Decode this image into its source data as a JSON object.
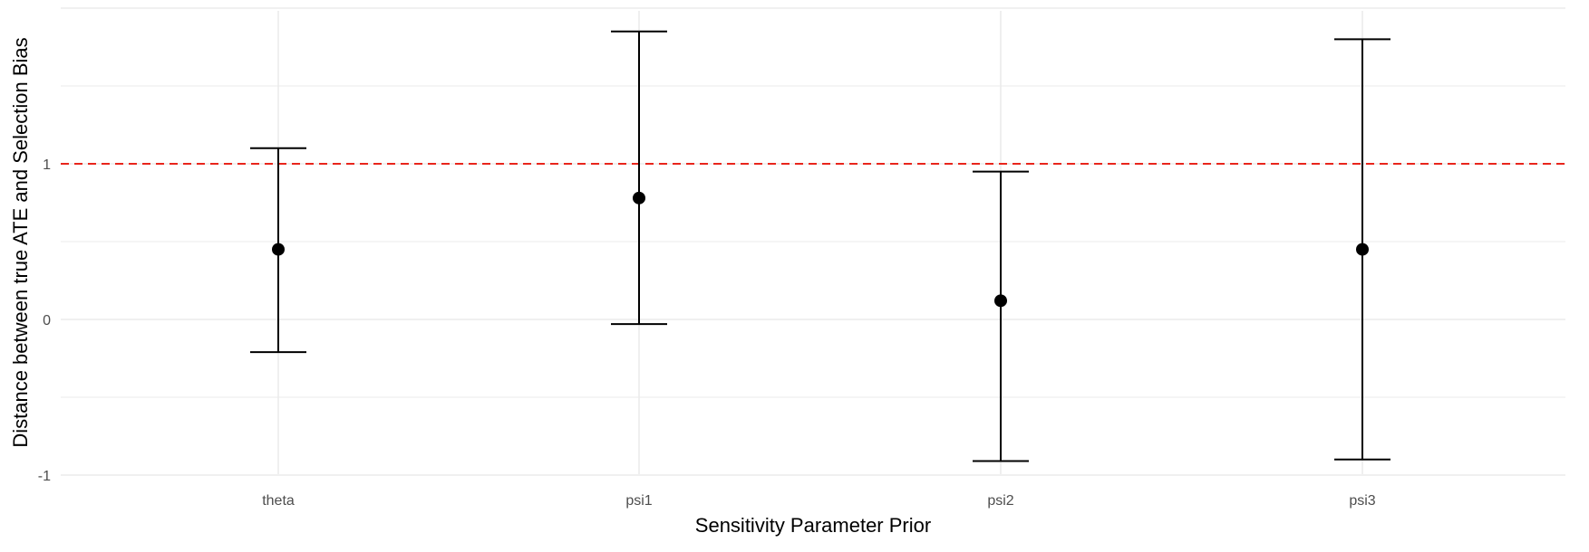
{
  "chart_data": {
    "type": "errorbar",
    "categories": [
      "theta",
      "psi1",
      "psi2",
      "psi3"
    ],
    "series": [
      {
        "values": [
          0.45,
          0.78,
          0.12,
          0.45
        ],
        "lower": [
          -0.21,
          -0.03,
          -0.91,
          -0.9
        ],
        "upper": [
          1.1,
          1.85,
          0.95,
          1.8
        ]
      }
    ],
    "reference_line": {
      "y": 1,
      "color": "#e8251b",
      "style": "dashed"
    },
    "xlabel": "Sensitivity Parameter Prior",
    "ylabel": "Distance between true ATE and Selection Bias",
    "ylim": [
      -1,
      2
    ],
    "yticks": [
      -1,
      0,
      1
    ],
    "ytick_labels": [
      "-1",
      "0",
      "1"
    ],
    "grid": true,
    "legend": "none",
    "colors": {
      "points": "#000000",
      "errorbars": "#000000",
      "grid": "#ebebeb"
    }
  }
}
